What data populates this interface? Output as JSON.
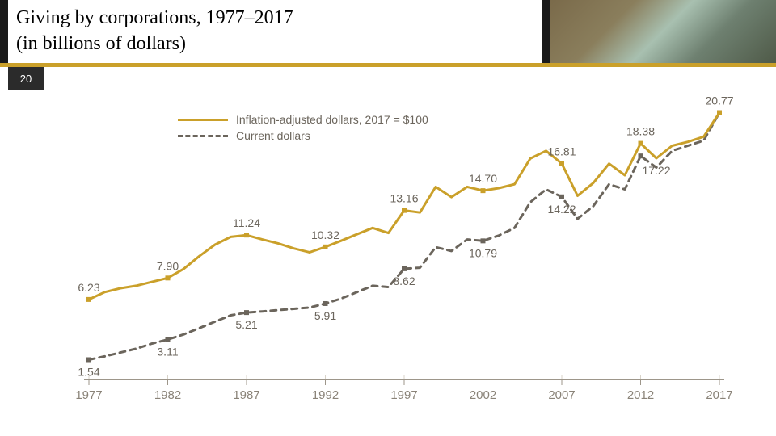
{
  "header": {
    "title_line1": "Giving by corporations, 1977–2017",
    "title_line2": "(in billions of dollars)",
    "title_fontsize": 24,
    "title_color": "#000000",
    "band_bg": "#1a1a1a",
    "gold_rule_color": "#caa02a",
    "page_number": "20",
    "page_tab_bg": "#2b2b2b",
    "page_tab_fg": "#ffffff"
  },
  "chart": {
    "type": "line",
    "background_color": "#ffffff",
    "grid_color": "#d8d3c9",
    "axis_color": "#9d968a",
    "axis_text_color": "#8a8378",
    "axis_fontsize": 15,
    "label_text_color": "#6b655c",
    "label_fontsize": 14,
    "line_width": 3,
    "marker_size": 6,
    "xdomain": [
      1977,
      2017
    ],
    "ydomain": [
      0,
      22
    ],
    "xticks": [
      1977,
      1982,
      1987,
      1992,
      1997,
      2002,
      2007,
      2012,
      2017
    ],
    "legend": {
      "position": "top-left",
      "items": [
        {
          "label": "Inflation-adjusted dollars, 2017 = $100",
          "series": "adjusted"
        },
        {
          "label": "Current dollars",
          "series": "current"
        }
      ]
    },
    "series": {
      "adjusted": {
        "label": "Inflation-adjusted dollars, 2017 = $100",
        "color": "#caa02a",
        "dash": "solid",
        "marker_style": "square",
        "marker_color": "#caa02a",
        "points": [
          {
            "x": 1977,
            "y": 6.23,
            "label": "6.23",
            "label_pos": "above"
          },
          {
            "x": 1978,
            "y": 6.8
          },
          {
            "x": 1979,
            "y": 7.1
          },
          {
            "x": 1980,
            "y": 7.3
          },
          {
            "x": 1981,
            "y": 7.6
          },
          {
            "x": 1982,
            "y": 7.9,
            "label": "7.90",
            "label_pos": "above"
          },
          {
            "x": 1983,
            "y": 8.6
          },
          {
            "x": 1984,
            "y": 9.6
          },
          {
            "x": 1985,
            "y": 10.5
          },
          {
            "x": 1986,
            "y": 11.1
          },
          {
            "x": 1987,
            "y": 11.24,
            "label": "11.24",
            "label_pos": "above"
          },
          {
            "x": 1988,
            "y": 10.9
          },
          {
            "x": 1989,
            "y": 10.6
          },
          {
            "x": 1990,
            "y": 10.2
          },
          {
            "x": 1991,
            "y": 9.9
          },
          {
            "x": 1992,
            "y": 10.32,
            "label": "10.32",
            "label_pos": "above"
          },
          {
            "x": 1993,
            "y": 10.8
          },
          {
            "x": 1994,
            "y": 11.3
          },
          {
            "x": 1995,
            "y": 11.8
          },
          {
            "x": 1996,
            "y": 11.4
          },
          {
            "x": 1997,
            "y": 13.16,
            "label": "13.16",
            "label_pos": "above"
          },
          {
            "x": 1998,
            "y": 13.0
          },
          {
            "x": 1999,
            "y": 15.0
          },
          {
            "x": 2000,
            "y": 14.2
          },
          {
            "x": 2001,
            "y": 15.0
          },
          {
            "x": 2002,
            "y": 14.7,
            "label": "14.70",
            "label_pos": "above"
          },
          {
            "x": 2003,
            "y": 14.9
          },
          {
            "x": 2004,
            "y": 15.2
          },
          {
            "x": 2005,
            "y": 17.2
          },
          {
            "x": 2006,
            "y": 17.8
          },
          {
            "x": 2007,
            "y": 16.81,
            "label": "16.81",
            "label_pos": "above"
          },
          {
            "x": 2008,
            "y": 14.3
          },
          {
            "x": 2009,
            "y": 15.3
          },
          {
            "x": 2010,
            "y": 16.8
          },
          {
            "x": 2011,
            "y": 15.9
          },
          {
            "x": 2012,
            "y": 18.38,
            "label": "18.38",
            "label_pos": "above"
          },
          {
            "x": 2013,
            "y": 17.22,
            "label": "17.22",
            "label_pos": "below"
          },
          {
            "x": 2014,
            "y": 18.2
          },
          {
            "x": 2015,
            "y": 18.5
          },
          {
            "x": 2016,
            "y": 18.9
          },
          {
            "x": 2017,
            "y": 20.77,
            "label": "20.77",
            "label_pos": "above"
          }
        ]
      },
      "current": {
        "label": "Current dollars",
        "color": "#6b655c",
        "dash": "dashed",
        "dash_pattern": "7 6",
        "marker_style": "square",
        "marker_color": "#6b655c",
        "points": [
          {
            "x": 1977,
            "y": 1.54,
            "label": "1.54",
            "label_pos": "below"
          },
          {
            "x": 1978,
            "y": 1.8
          },
          {
            "x": 1979,
            "y": 2.1
          },
          {
            "x": 1980,
            "y": 2.4
          },
          {
            "x": 1981,
            "y": 2.8
          },
          {
            "x": 1982,
            "y": 3.11,
            "label": "3.11",
            "label_pos": "below"
          },
          {
            "x": 1983,
            "y": 3.5
          },
          {
            "x": 1984,
            "y": 4.0
          },
          {
            "x": 1985,
            "y": 4.5
          },
          {
            "x": 1986,
            "y": 5.0
          },
          {
            "x": 1987,
            "y": 5.21,
            "label": "5.21",
            "label_pos": "below"
          },
          {
            "x": 1988,
            "y": 5.3
          },
          {
            "x": 1989,
            "y": 5.4
          },
          {
            "x": 1990,
            "y": 5.5
          },
          {
            "x": 1991,
            "y": 5.6
          },
          {
            "x": 1992,
            "y": 5.91,
            "label": "5.91",
            "label_pos": "below"
          },
          {
            "x": 1993,
            "y": 6.3
          },
          {
            "x": 1994,
            "y": 6.8
          },
          {
            "x": 1995,
            "y": 7.3
          },
          {
            "x": 1996,
            "y": 7.2
          },
          {
            "x": 1997,
            "y": 8.62,
            "label": "8.62",
            "label_pos": "below"
          },
          {
            "x": 1998,
            "y": 8.7
          },
          {
            "x": 1999,
            "y": 10.3
          },
          {
            "x": 2000,
            "y": 10.0
          },
          {
            "x": 2001,
            "y": 10.9
          },
          {
            "x": 2002,
            "y": 10.79,
            "label": "10.79",
            "label_pos": "below"
          },
          {
            "x": 2003,
            "y": 11.2
          },
          {
            "x": 2004,
            "y": 11.8
          },
          {
            "x": 2005,
            "y": 13.8
          },
          {
            "x": 2006,
            "y": 14.8
          },
          {
            "x": 2007,
            "y": 14.22,
            "label": "14.22",
            "label_pos": "below"
          },
          {
            "x": 2008,
            "y": 12.5
          },
          {
            "x": 2009,
            "y": 13.5
          },
          {
            "x": 2010,
            "y": 15.2
          },
          {
            "x": 2011,
            "y": 14.8
          },
          {
            "x": 2012,
            "y": 17.4
          },
          {
            "x": 2013,
            "y": 16.5
          },
          {
            "x": 2014,
            "y": 17.8
          },
          {
            "x": 2015,
            "y": 18.2
          },
          {
            "x": 2016,
            "y": 18.6
          },
          {
            "x": 2017,
            "y": 20.77
          }
        ]
      }
    }
  }
}
